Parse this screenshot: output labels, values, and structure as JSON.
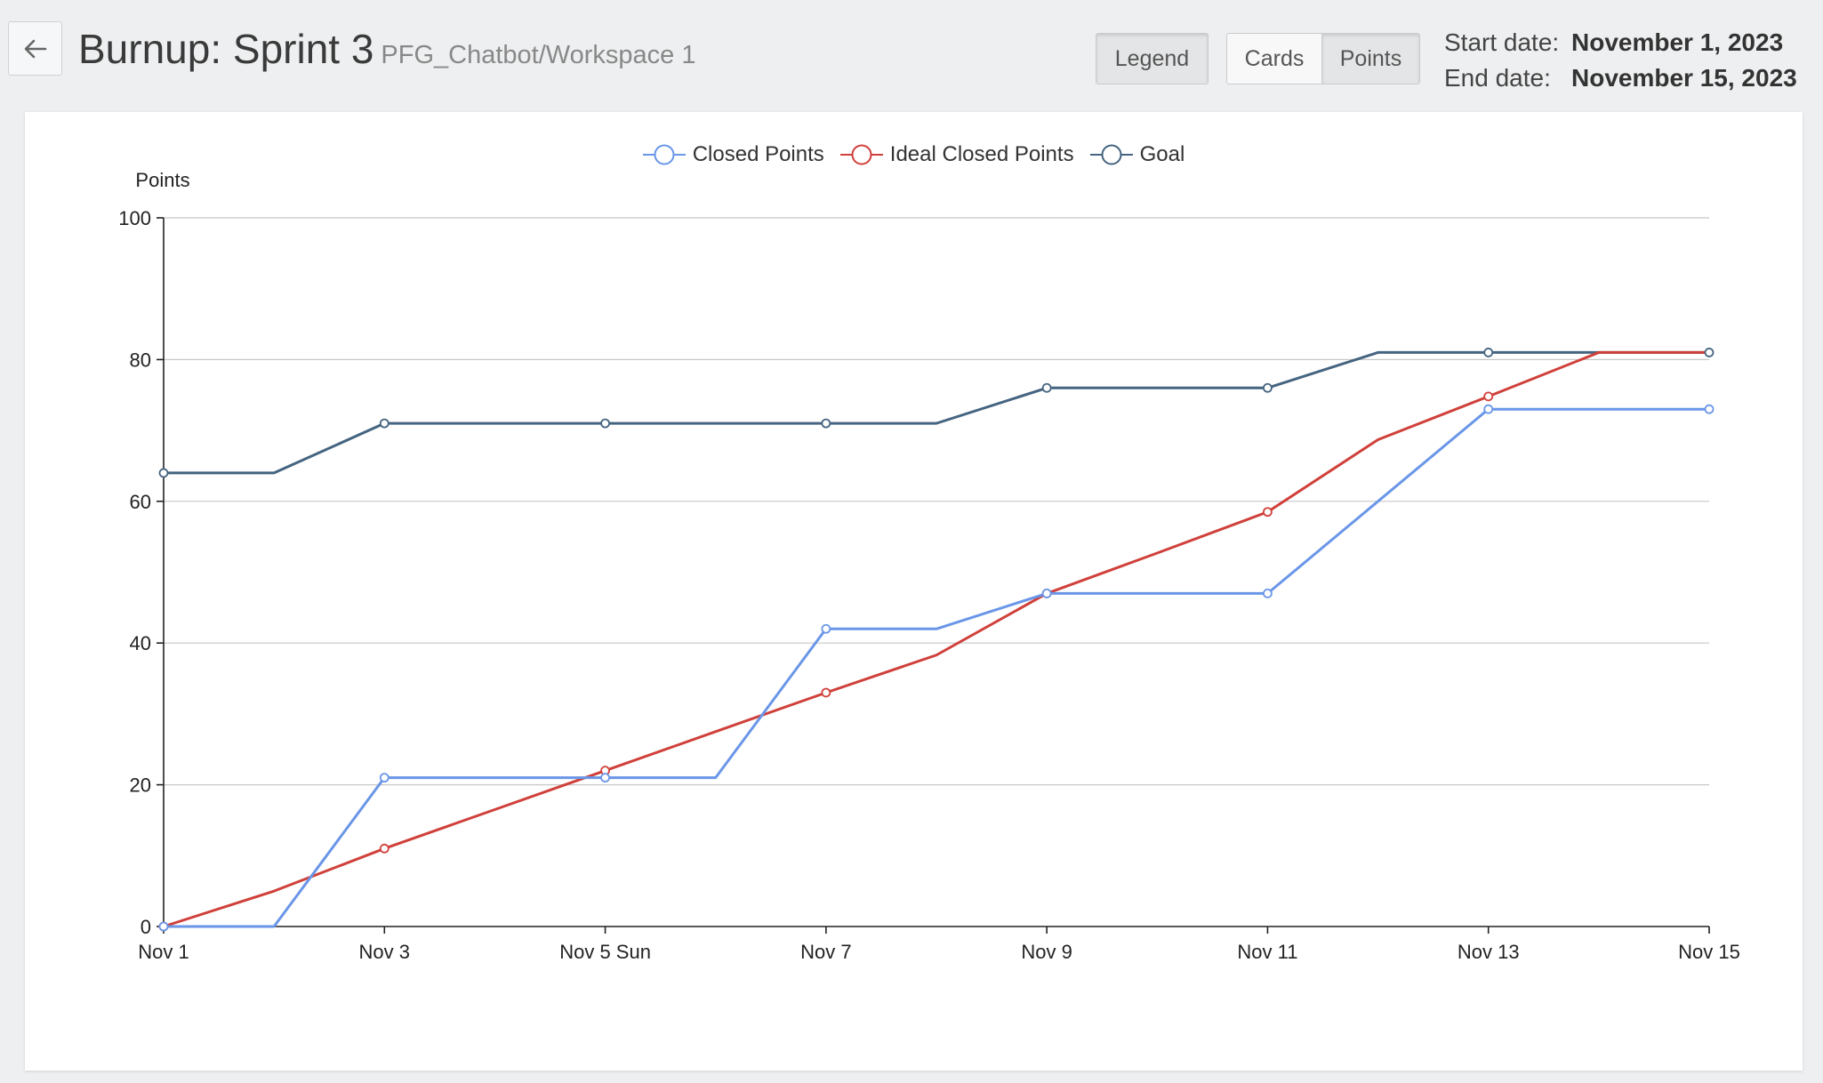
{
  "header": {
    "title": "Burnup: Sprint 3",
    "subtitle": "PFG_Chatbot/Workspace 1",
    "legend_button": "Legend",
    "cards_button": "Cards",
    "points_button": "Points",
    "start_label": "Start date:",
    "start_value": "November 1, 2023",
    "end_label": "End date:",
    "end_value": "November 15, 2023"
  },
  "chart_data": {
    "type": "line",
    "ylabel": "Points",
    "ylim": [
      0,
      100
    ],
    "yticks": [
      0,
      20,
      40,
      60,
      80,
      100
    ],
    "x": [
      1,
      2,
      3,
      4,
      5,
      6,
      7,
      8,
      9,
      10,
      11,
      12,
      13,
      14,
      15
    ],
    "x_tick_labels": [
      {
        "x": 1,
        "label": "Nov 1"
      },
      {
        "x": 3,
        "label": "Nov 3"
      },
      {
        "x": 5,
        "label": "Nov 5 Sun"
      },
      {
        "x": 7,
        "label": "Nov 7"
      },
      {
        "x": 9,
        "label": "Nov 9"
      },
      {
        "x": 11,
        "label": "Nov 11"
      },
      {
        "x": 13,
        "label": "Nov 13"
      },
      {
        "x": 15,
        "label": "Nov 15"
      }
    ],
    "grid": true,
    "legend_position": "top",
    "series": [
      {
        "name": "Closed Points",
        "color": "#6a96e8",
        "values": [
          0,
          0,
          21,
          21,
          21,
          21,
          42,
          42,
          47,
          47,
          47,
          60,
          73,
          73,
          73
        ],
        "markers_at": [
          1,
          3,
          5,
          7,
          9,
          11,
          13,
          15
        ]
      },
      {
        "name": "Ideal Closed Points",
        "color": "#d0403a",
        "values": [
          0,
          5,
          11,
          16.5,
          22,
          27.5,
          33,
          38.3,
          47,
          52.7,
          58.5,
          68.7,
          74.8,
          81,
          81
        ],
        "markers_at": [
          1,
          3,
          5,
          7,
          9,
          11,
          13
        ]
      },
      {
        "name": "Goal",
        "color": "#456480",
        "values": [
          64,
          64,
          71,
          71,
          71,
          71,
          71,
          71,
          76,
          76,
          76,
          81,
          81,
          81,
          81
        ],
        "markers_at": [
          1,
          3,
          5,
          7,
          9,
          11,
          13,
          15
        ]
      }
    ]
  }
}
